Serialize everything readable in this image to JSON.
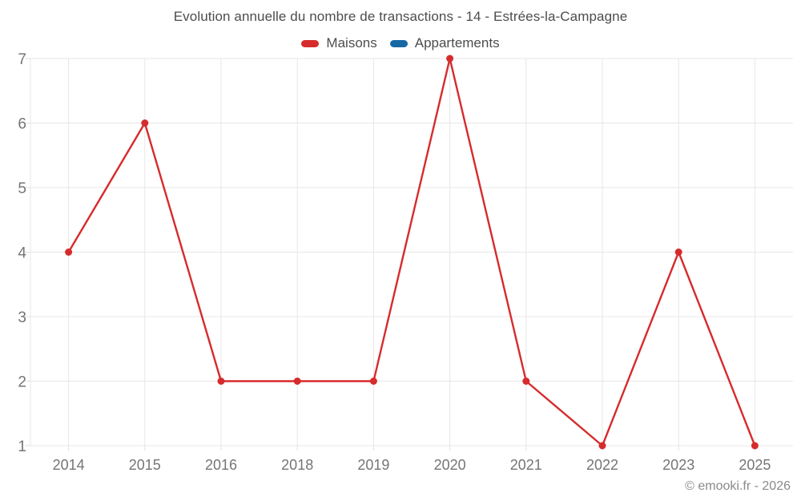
{
  "chart_data": {
    "type": "line",
    "title": "Evolution annuelle du nombre de transactions - 14 - Estrées-la-Campagne",
    "categories": [
      "2014",
      "2015",
      "2016",
      "2018",
      "2019",
      "2020",
      "2021",
      "2022",
      "2023",
      "2025"
    ],
    "series": [
      {
        "name": "Maisons",
        "color": "#d62b2c",
        "values": [
          4,
          6,
          2,
          2,
          2,
          7,
          2,
          1,
          4,
          1
        ]
      },
      {
        "name": "Appartements",
        "color": "#1668a5",
        "values": []
      }
    ],
    "xlabel": "",
    "ylabel": "",
    "ylim": [
      1,
      7
    ],
    "yticks": [
      1,
      2,
      3,
      4,
      5,
      6,
      7
    ],
    "grid": true,
    "legend_position": "top",
    "point_style": "filled-circle",
    "colors": {
      "grid": "#e7e7e7",
      "tick": "#e0e0e0",
      "axis_label": "#757575",
      "title_text": "#4d4d4d",
      "background": "#ffffff"
    }
  },
  "footer": {
    "text": "© emooki.fr - 2026"
  }
}
